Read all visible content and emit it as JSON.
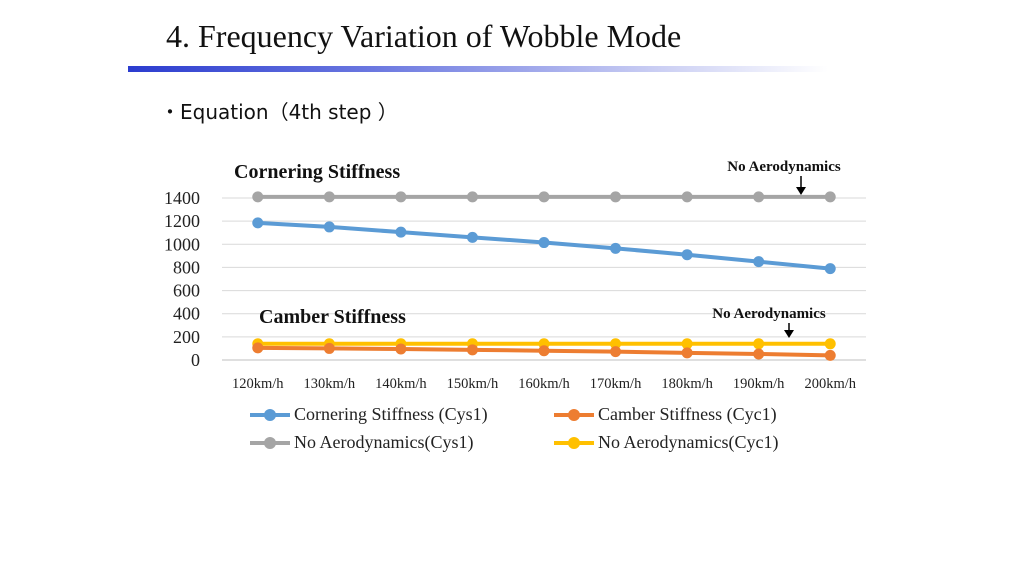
{
  "slide": {
    "title": "4. Frequency Variation of Wobble Mode",
    "bullet": "・Equation（4th step ）"
  },
  "annotations": {
    "cornering_label": "Cornering Stiffness",
    "camber_label": "Camber Stiffness",
    "no_aero_top": "No Aerodynamics",
    "no_aero_bottom": "No Aerodynamics"
  },
  "chart_data": {
    "type": "line",
    "categories": [
      "120km/h",
      "130km/h",
      "140km/h",
      "150km/h",
      "160km/h",
      "170km/h",
      "180km/h",
      "190km/h",
      "200km/h"
    ],
    "ylim": [
      0,
      1400
    ],
    "yticks": [
      0,
      200,
      400,
      600,
      800,
      1000,
      1200,
      1400
    ],
    "grid": true,
    "legend_position": "bottom",
    "series": [
      {
        "name": "Cornering Stiffness (Cys1)",
        "color": "#5b9bd5",
        "values": [
          1185,
          1150,
          1105,
          1060,
          1015,
          965,
          910,
          850,
          790
        ]
      },
      {
        "name": "Camber Stiffness (Cyc1)",
        "color": "#ed7d31",
        "values": [
          105,
          100,
          95,
          88,
          80,
          72,
          62,
          52,
          40
        ]
      },
      {
        "name": "No Aerodynamics(Cys1)",
        "color": "#a5a5a5",
        "values": [
          1410,
          1410,
          1410,
          1410,
          1410,
          1410,
          1410,
          1410,
          1410
        ]
      },
      {
        "name": "No Aerodynamics(Cyc1)",
        "color": "#ffc000",
        "values": [
          140,
          140,
          140,
          140,
          140,
          140,
          140,
          140,
          140
        ]
      }
    ]
  }
}
